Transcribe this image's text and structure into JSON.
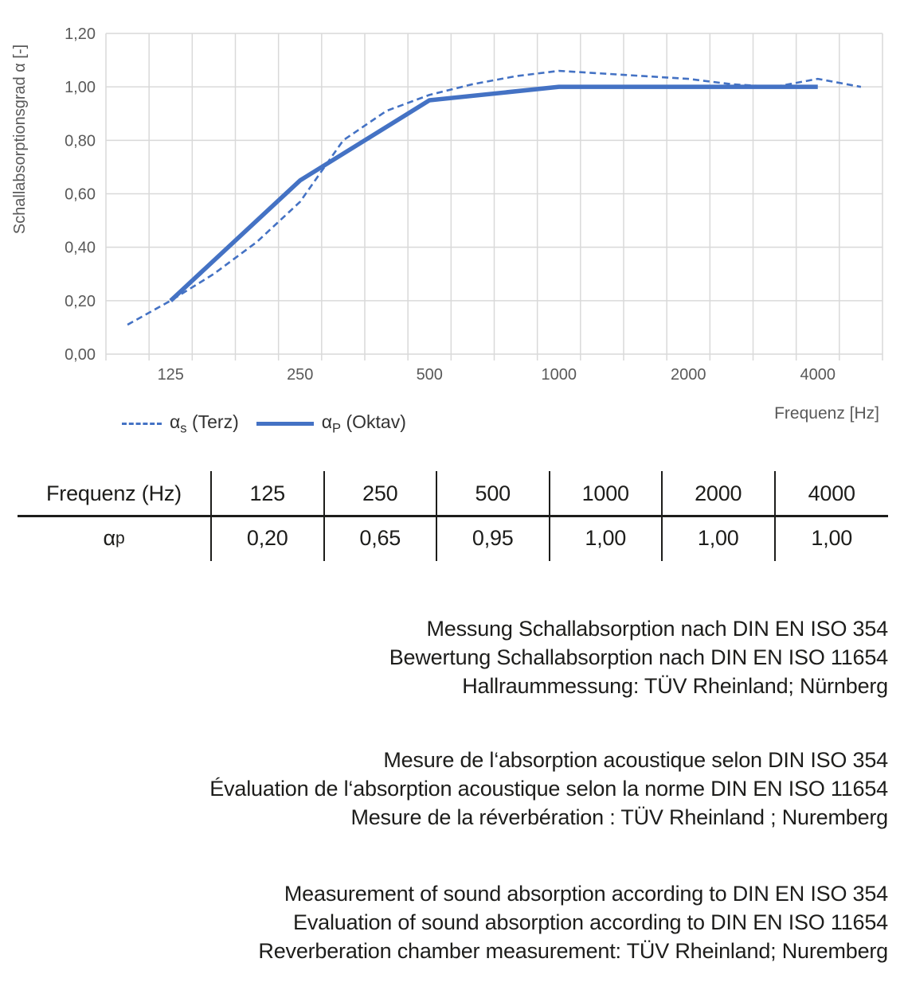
{
  "chart_data": {
    "type": "line",
    "title": "",
    "xlabel": "Frequenz [Hz]",
    "ylabel": "Schallabsorptionsgrad α [-]",
    "categories": [
      "100",
      "125",
      "160",
      "200",
      "250",
      "315",
      "400",
      "500",
      "630",
      "800",
      "1000",
      "1250",
      "1600",
      "2000",
      "2500",
      "3150",
      "4000",
      "5000"
    ],
    "x_axis": {
      "label": "Frequenz [Hz]",
      "tick_labels": [
        "125",
        "250",
        "500",
        "1000",
        "2000",
        "4000"
      ]
    },
    "y_axis": {
      "label": "Schallabsorptionsgrad α [-]",
      "min": 0.0,
      "max": 1.2,
      "step": 0.2,
      "tick_labels": [
        "0,00",
        "0,20",
        "0,40",
        "0,60",
        "0,80",
        "1,00",
        "1,20"
      ]
    },
    "grid": true,
    "legend_position": "bottom-left",
    "series": [
      {
        "name": "αs (Terz)",
        "style": "dashed",
        "x": [
          "100",
          "125",
          "160",
          "200",
          "250",
          "315",
          "400",
          "500",
          "630",
          "800",
          "1000",
          "1250",
          "1600",
          "2000",
          "2500",
          "3150",
          "4000",
          "5000"
        ],
        "values": [
          0.11,
          0.2,
          0.3,
          0.42,
          0.57,
          0.8,
          0.91,
          0.97,
          1.01,
          1.04,
          1.06,
          1.05,
          1.04,
          1.03,
          1.01,
          1.0,
          1.03,
          1.0
        ]
      },
      {
        "name": "αP (Oktav)",
        "style": "solid",
        "x": [
          "125",
          "250",
          "500",
          "1000",
          "2000",
          "4000"
        ],
        "values": [
          0.2,
          0.65,
          0.95,
          1.0,
          1.0,
          1.0
        ]
      }
    ],
    "colors": {
      "line": "#4472C4",
      "grid": "#D9D9D9",
      "axis_text": "#595959"
    }
  },
  "legend": {
    "items": [
      {
        "alpha": "α",
        "sub": "s",
        "rest": " (Terz)",
        "style": "dashed"
      },
      {
        "alpha": "α",
        "sub": "P",
        "rest": " (Oktav)",
        "style": "solid"
      }
    ]
  },
  "table": {
    "header": [
      "Frequenz (Hz)",
      "125",
      "250",
      "500",
      "1000",
      "2000",
      "4000"
    ],
    "row": {
      "label_base": "α",
      "label_sub": "p",
      "values": [
        "0,20",
        "0,65",
        "0,95",
        "1,00",
        "1,00",
        "1,00"
      ]
    }
  },
  "notes": {
    "de": [
      "Messung Schallabsorption nach DIN EN ISO 354",
      "Bewertung Schallabsorption nach DIN EN ISO 11654",
      "Hallraummessung: TÜV Rheinland; Nürnberg"
    ],
    "fr": [
      "Mesure de l‘absorption acoustique selon DIN ISO 354",
      "Évaluation de l‘absorption acoustique selon la norme DIN EN ISO 11654",
      "Mesure de la réverbération : TÜV Rheinland ; Nuremberg"
    ],
    "en": [
      "Measurement of sound absorption according to DIN EN ISO 354",
      "Evaluation of sound absorption according to DIN EN ISO 11654",
      "Reverberation chamber measurement: TÜV Rheinland; Nuremberg"
    ]
  }
}
